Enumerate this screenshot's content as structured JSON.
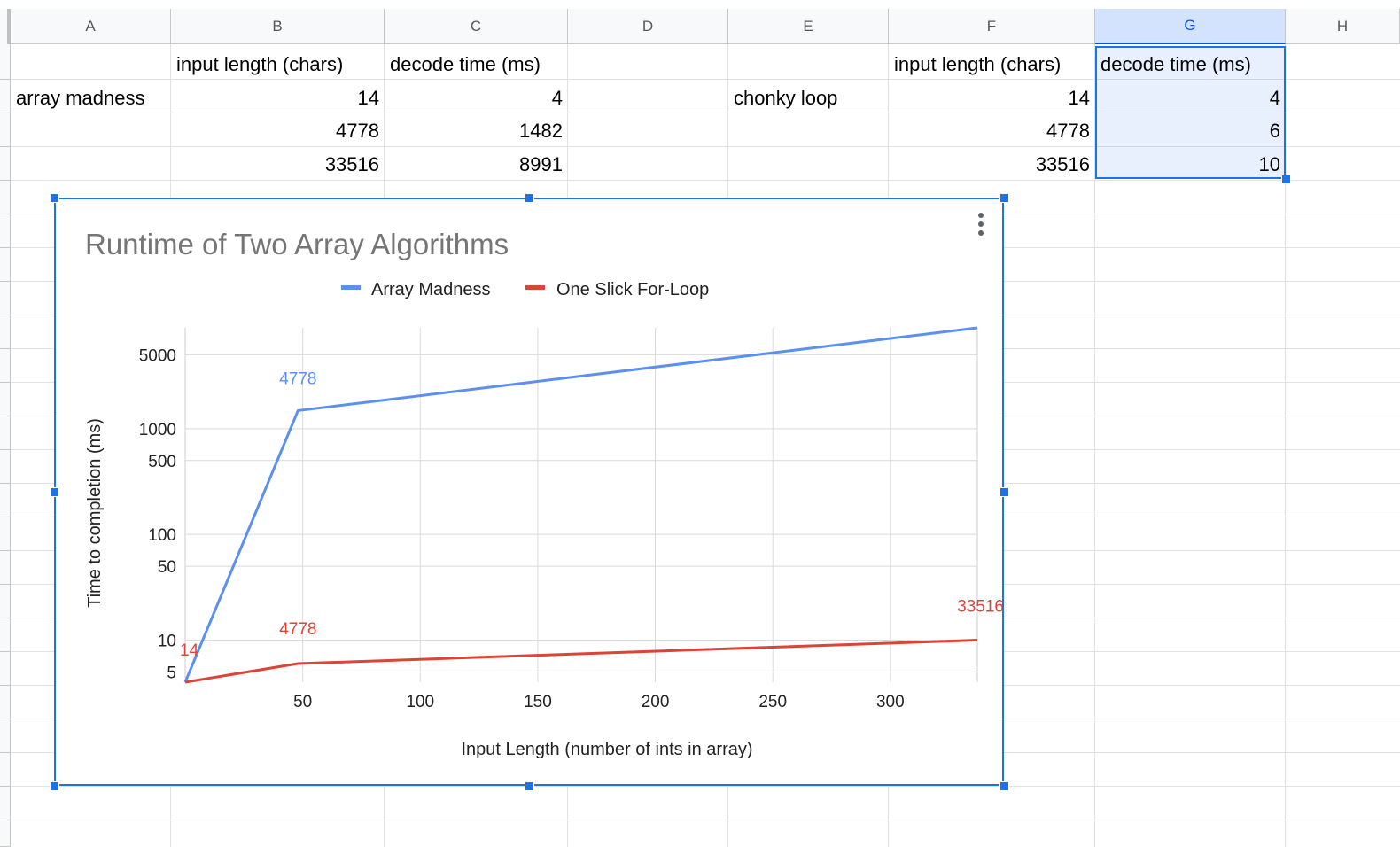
{
  "sheet": {
    "columns": [
      "A",
      "B",
      "C",
      "D",
      "E",
      "F",
      "G",
      "H"
    ],
    "selected_column": "G",
    "table_left": {
      "label": "array madness",
      "headers": [
        "input length (chars)",
        "decode time (ms)"
      ],
      "rows": [
        [
          "14",
          "4"
        ],
        [
          "4778",
          "1482"
        ],
        [
          "33516",
          "8991"
        ]
      ]
    },
    "table_right": {
      "label": "chonky loop",
      "headers": [
        "input length (chars)",
        "decode time (ms)"
      ],
      "rows": [
        [
          "14",
          "4"
        ],
        [
          "4778",
          "6"
        ],
        [
          "33516",
          "10"
        ]
      ]
    }
  },
  "chart_data": {
    "type": "line",
    "title": "Runtime of Two Array Algorithms",
    "xlabel": "Input Length (number of ints in array)",
    "ylabel": "Time to completion (ms)",
    "y_scale": "log",
    "xlim": [
      0,
      337
    ],
    "ylim": [
      4,
      8991
    ],
    "x_ticks": [
      "50",
      "100",
      "150",
      "200",
      "250",
      "300"
    ],
    "y_ticks": [
      "5000",
      "1000",
      "500",
      "100",
      "50",
      "10",
      "5"
    ],
    "grid": true,
    "legend": "top",
    "series": [
      {
        "name": "Array Madness",
        "color": "#5b8ff0",
        "x": [
          0,
          48,
          337
        ],
        "y": [
          4,
          1482,
          8991
        ],
        "point_labels": [
          "",
          "4778",
          ""
        ]
      },
      {
        "name": "One Slick For-Loop",
        "color": "#db4437",
        "x": [
          0,
          48,
          337
        ],
        "y": [
          4,
          6,
          10
        ],
        "point_labels": [
          "14",
          "4778",
          "33516"
        ]
      }
    ]
  }
}
